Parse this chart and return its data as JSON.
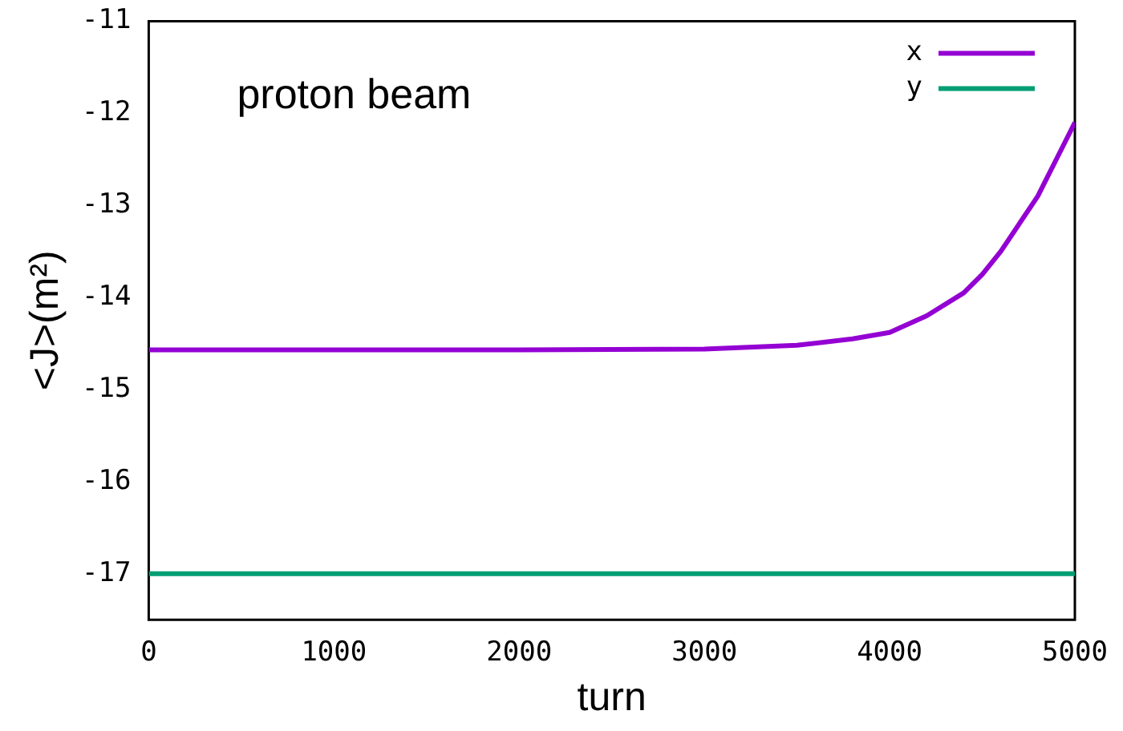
{
  "chart_data": {
    "type": "line",
    "ylabel": "<J>(m²)",
    "xlabel": "turn",
    "annotations": [
      "proton beam"
    ],
    "xlim": [
      0,
      5000
    ],
    "xticks": [
      0,
      1000,
      2000,
      3000,
      4000,
      5000
    ],
    "ylim": [
      -17.5,
      -11
    ],
    "yticks": [
      -11,
      -12,
      -13,
      -14,
      -15,
      -16,
      -17
    ],
    "grid": false,
    "legend": "top right",
    "marker": "none",
    "line_style": "solid",
    "series": [
      {
        "name": "x",
        "color": "#9400d3",
        "x": [
          0,
          1000,
          2000,
          3000,
          3500,
          3800,
          4000,
          4200,
          4400,
          4500,
          4600,
          4700,
          4800,
          4850,
          4900,
          5000
        ],
        "values": [
          -14.57,
          -14.57,
          -14.57,
          -14.56,
          -14.52,
          -14.45,
          -14.38,
          -14.2,
          -13.95,
          -13.75,
          -13.5,
          -13.2,
          -12.9,
          -12.7,
          -12.5,
          -12.1
        ]
      },
      {
        "name": "y",
        "color": "#009e73",
        "x": [
          0,
          5000
        ],
        "values": [
          -17,
          -17
        ]
      }
    ]
  }
}
